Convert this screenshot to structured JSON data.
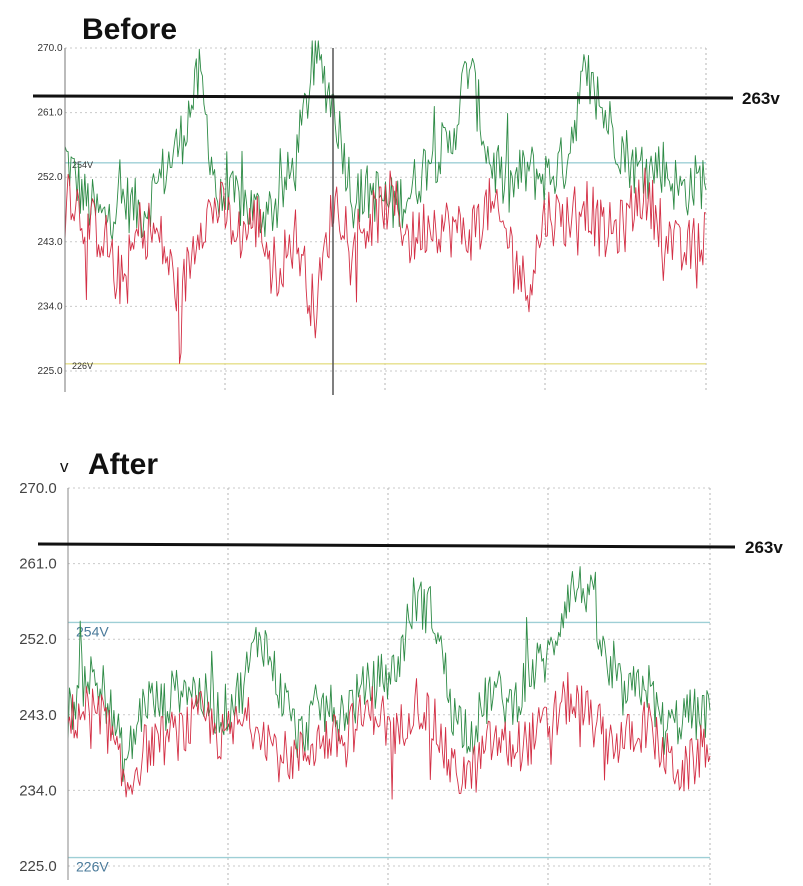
{
  "chart_data": [
    {
      "type": "line",
      "title": "Before",
      "ylim": [
        225,
        270
      ],
      "y_ticks": [
        "270.0",
        "261.0",
        "252.0",
        "243.0",
        "234.0",
        "225.0"
      ],
      "reference_lines": [
        {
          "label": "254V",
          "value": 254,
          "color": "#9ecfd6"
        },
        {
          "label": "226V",
          "value": 226,
          "color": "#e6df8a"
        }
      ],
      "threshold": {
        "label": "263v",
        "value": 263
      },
      "series": [
        {
          "color": "#2e8b46",
          "x": [
            0,
            0.03,
            0.06,
            0.09,
            0.12,
            0.15,
            0.18,
            0.21,
            0.24,
            0.27,
            0.3,
            0.33,
            0.36,
            0.39,
            0.42,
            0.45,
            0.48,
            0.51,
            0.54,
            0.57,
            0.6,
            0.63,
            0.66,
            0.69,
            0.72,
            0.75,
            0.78,
            0.81,
            0.84,
            0.87,
            0.9,
            0.93,
            0.96,
            1.0
          ],
          "values": [
            255,
            249,
            246,
            249,
            247,
            252,
            257,
            266,
            248,
            249,
            247,
            248,
            254,
            269,
            262,
            249,
            250,
            248,
            250,
            255,
            256,
            268,
            255,
            250,
            253,
            252,
            254,
            266,
            261,
            256,
            252,
            254,
            250,
            252
          ]
        },
        {
          "color": "#d32f45",
          "x": [
            0,
            0.03,
            0.06,
            0.09,
            0.12,
            0.15,
            0.18,
            0.21,
            0.24,
            0.27,
            0.3,
            0.33,
            0.36,
            0.39,
            0.42,
            0.45,
            0.48,
            0.51,
            0.54,
            0.57,
            0.6,
            0.63,
            0.66,
            0.69,
            0.72,
            0.75,
            0.78,
            0.81,
            0.84,
            0.87,
            0.9,
            0.93,
            0.96,
            1.0
          ],
          "values": [
            252,
            246,
            244,
            237,
            246,
            243,
            235,
            246,
            248,
            244,
            246,
            239,
            244,
            233,
            249,
            244,
            246,
            249,
            243,
            246,
            245,
            244,
            248,
            244,
            236,
            247,
            246,
            249,
            244,
            245,
            250,
            246,
            241,
            244
          ]
        }
      ]
    },
    {
      "type": "line",
      "title": "After",
      "unit": "v",
      "ylim": [
        225,
        270
      ],
      "y_ticks": [
        "270.0",
        "261.0",
        "252.0",
        "243.0",
        "234.0",
        "225.0"
      ],
      "reference_lines": [
        {
          "label": "254V",
          "value": 254,
          "color": "#9ecfd6"
        },
        {
          "label": "226V",
          "value": 226,
          "color": "#9ecfd6"
        }
      ],
      "threshold": {
        "label": "263v",
        "value": 263
      },
      "series": [
        {
          "color": "#2e8b46",
          "x": [
            0,
            0.03,
            0.06,
            0.09,
            0.12,
            0.15,
            0.18,
            0.21,
            0.24,
            0.27,
            0.3,
            0.33,
            0.36,
            0.39,
            0.42,
            0.45,
            0.48,
            0.51,
            0.54,
            0.57,
            0.6,
            0.63,
            0.66,
            0.69,
            0.72,
            0.75,
            0.78,
            0.81,
            0.84,
            0.87,
            0.9,
            0.93,
            0.96,
            1.0
          ],
          "values": [
            243,
            248,
            245,
            237,
            245,
            244,
            247,
            245,
            243,
            246,
            253,
            246,
            240,
            244,
            243,
            245,
            247,
            248,
            257,
            255,
            243,
            241,
            246,
            244,
            248,
            250,
            258,
            258,
            248,
            245,
            247,
            241,
            243,
            243
          ]
        },
        {
          "color": "#d32f45",
          "x": [
            0,
            0.03,
            0.06,
            0.09,
            0.12,
            0.15,
            0.18,
            0.21,
            0.24,
            0.27,
            0.3,
            0.33,
            0.36,
            0.39,
            0.42,
            0.45,
            0.48,
            0.51,
            0.54,
            0.57,
            0.6,
            0.63,
            0.66,
            0.69,
            0.72,
            0.75,
            0.78,
            0.81,
            0.84,
            0.87,
            0.9,
            0.93,
            0.96,
            1.0
          ],
          "values": [
            242,
            244,
            242,
            234,
            239,
            240,
            241,
            243,
            240,
            242,
            242,
            238,
            238,
            240,
            240,
            242,
            244,
            240,
            245,
            242,
            236,
            236,
            240,
            239,
            240,
            242,
            245,
            243,
            240,
            240,
            242,
            238,
            236,
            240
          ]
        }
      ]
    }
  ]
}
